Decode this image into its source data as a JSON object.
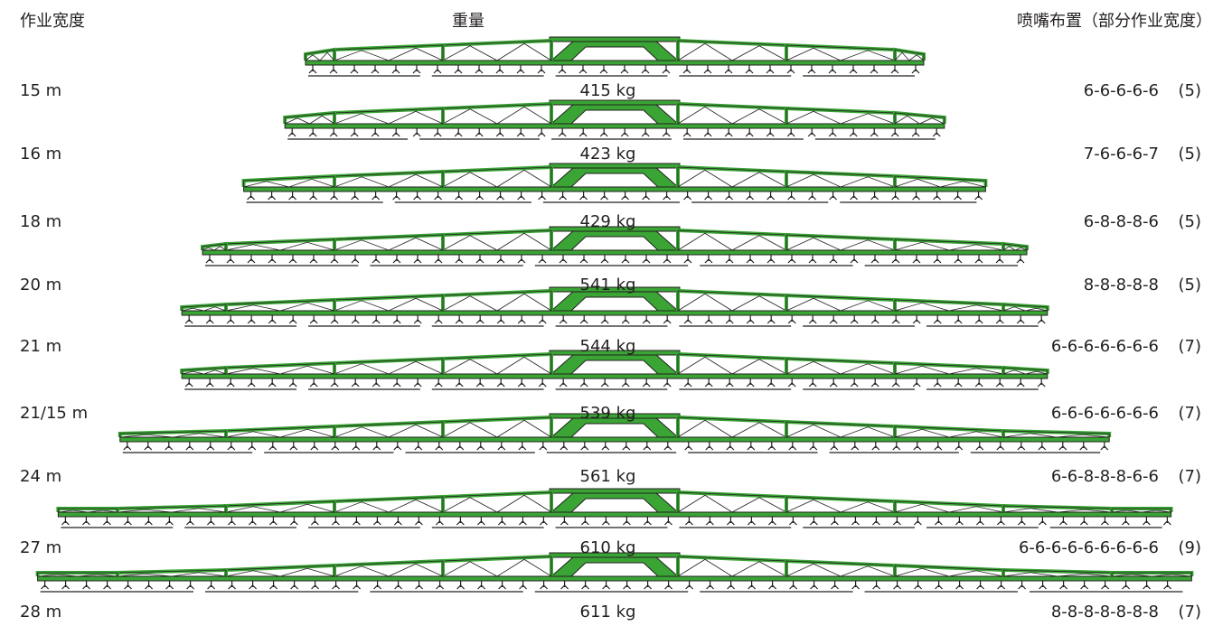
{
  "headers": {
    "working_width": "作业宽度",
    "weight": "重量",
    "nozzle_arrangement": "喷嘴布置（部分作业宽度）"
  },
  "colors": {
    "boom_green": "#3aa535",
    "outline": "#231f20"
  },
  "rows": [
    {
      "width": "15 m",
      "weight": "415 kg",
      "nozzles": "6-6-6-6-6",
      "sections": "(5)",
      "span_m": 15
    },
    {
      "width": "16 m",
      "weight": "423 kg",
      "nozzles": "7-6-6-6-7",
      "sections": "(5)",
      "span_m": 16
    },
    {
      "width": "18 m",
      "weight": "429 kg",
      "nozzles": "6-8-8-8-6",
      "sections": "(5)",
      "span_m": 18
    },
    {
      "width": "20 m",
      "weight": "541 kg",
      "nozzles": "8-8-8-8-8",
      "sections": "(5)",
      "span_m": 20
    },
    {
      "width": "21 m",
      "weight": "544 kg",
      "nozzles": "6-6-6-6-6-6-6",
      "sections": "(7)",
      "span_m": 21
    },
    {
      "width": "21/15 m",
      "weight": "539 kg",
      "nozzles": "6-6-6-6-6-6-6",
      "sections": "(7)",
      "span_m": 21
    },
    {
      "width": "24 m",
      "weight": "561 kg",
      "nozzles": "6-6-8-8-8-6-6",
      "sections": "(7)",
      "span_m": 24
    },
    {
      "width": "27 m",
      "weight": "610 kg",
      "nozzles": "6-6-6-6-6-6-6-6-6",
      "sections": "(9)",
      "span_m": 27
    },
    {
      "width": "28 m",
      "weight": "611 kg",
      "nozzles": "8-8-8-8-8-8-8",
      "sections": "(7)",
      "span_m": 28
    }
  ]
}
